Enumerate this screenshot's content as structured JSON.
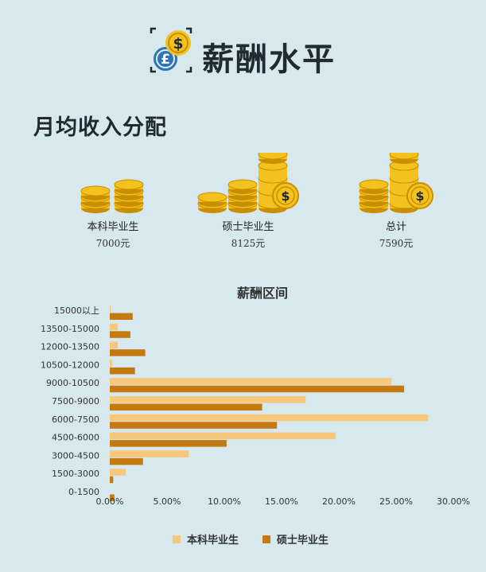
{
  "header": {
    "title": "薪酬水平"
  },
  "section": {
    "title": "月均收入分配"
  },
  "stats": [
    {
      "label": "本科毕业生",
      "value": "7000元"
    },
    {
      "label": "硕士毕业生",
      "value": "8125元"
    },
    {
      "label": "总计",
      "value": "7590元"
    }
  ],
  "colors": {
    "background": "#d7e8ee",
    "undergrad": "#f7c77a",
    "master": "#c47a10",
    "coin": "#f4c21f",
    "coin_dark": "#c98f00",
    "logo_blue": "#2d74b6"
  },
  "icons": {
    "logo": "currency-coins-icon",
    "stat": "coin-stack-icon"
  },
  "chart_data": {
    "type": "bar",
    "orientation": "horizontal",
    "title": "薪酬区间",
    "categories": [
      "15000以上",
      "13500-15000",
      "12000-13500",
      "10500-12000",
      "9000-10500",
      "7500-9000",
      "6000-7500",
      "4500-6000",
      "3000-4500",
      "1500-3000",
      "0-1500"
    ],
    "series": [
      {
        "name": "本科毕业生",
        "values": [
          0.1,
          0.7,
          0.7,
          0.2,
          24.6,
          17.1,
          27.8,
          19.7,
          6.9,
          1.4,
          0
        ]
      },
      {
        "name": "硕士毕业生",
        "values": [
          2.0,
          1.8,
          3.1,
          2.2,
          25.7,
          13.3,
          14.6,
          10.2,
          2.9,
          0.3,
          0.4
        ]
      }
    ],
    "xticks": [
      "0.00%",
      "5.00%",
      "10.00%",
      "15.00%",
      "20.00%",
      "25.00%",
      "30.00%"
    ],
    "xlim": [
      0,
      30
    ],
    "grid": false,
    "legend_position": "bottom"
  }
}
